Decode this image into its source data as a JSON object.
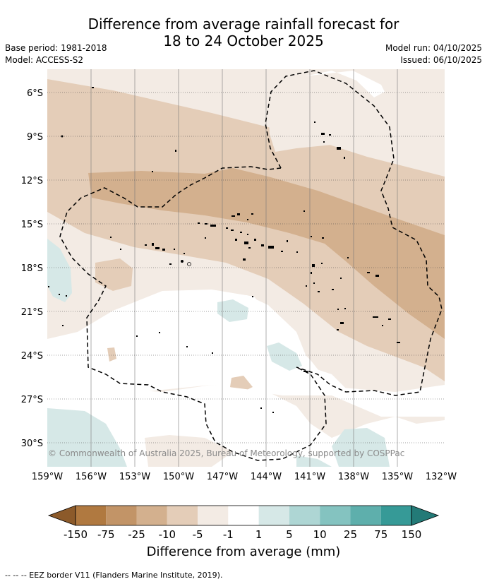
{
  "title": {
    "line1": "Difference from average rainfall forecast for",
    "line2": "18 to 24 October 2025"
  },
  "meta_left": {
    "base_period": "Base period: 1981-2018",
    "model": "Model: ACCESS-S2"
  },
  "meta_right": {
    "model_run": "Model run: 04/10/2025",
    "issued": "Issued: 06/10/2025"
  },
  "lat_labels": [
    "6°S",
    "9°S",
    "12°S",
    "15°S",
    "18°S",
    "21°S",
    "24°S",
    "27°S",
    "30°S"
  ],
  "lon_labels": [
    "159°W",
    "156°W",
    "153°W",
    "150°W",
    "147°W",
    "144°W",
    "141°W",
    "138°W",
    "135°W",
    "132°W"
  ],
  "copyright": "© Commonwealth of Australia 2025, Bureau of Meteorology, supported by COSPPac",
  "colorbar": {
    "labels": [
      "-150",
      "-75",
      "-25",
      "-10",
      "-5",
      "-1",
      "1",
      "5",
      "10",
      "25",
      "75",
      "150"
    ],
    "colors": [
      "#8c5a2a",
      "#b07940",
      "#c29467",
      "#d3b08e",
      "#e4cdb8",
      "#f3ebe4",
      "#ffffff",
      "#d6e8e7",
      "#aed6d4",
      "#84c3c0",
      "#5eafac",
      "#369a97",
      "#237a77"
    ],
    "title": "Difference from average (mm)"
  },
  "footnote": "-- -- -- EEZ border V11 (Flanders Marine Institute, 2019).",
  "palette": {
    "very_light_brown": "#f3ebe4",
    "light_brown": "#e4cdb8",
    "mid_brown": "#d3b08e",
    "light_teal": "#d6e8e7"
  }
}
